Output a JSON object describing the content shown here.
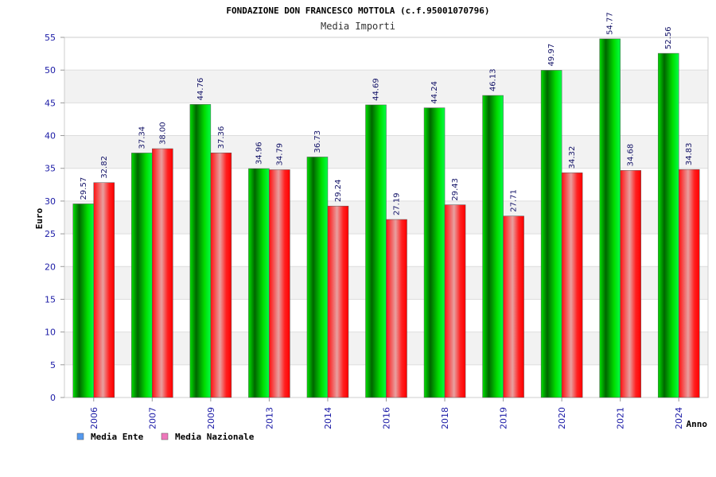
{
  "chart_data": {
    "type": "bar",
    "title": "FONDAZIONE DON FRANCESCO MOTTOLA (c.f.95001070796)",
    "subtitle": "Media Importi",
    "ylabel": "Euro",
    "xlabel": "Anno",
    "ylim": [
      0,
      55
    ],
    "yticks": [
      "0",
      "5",
      "10",
      "15",
      "20",
      "25",
      "30",
      "35",
      "40",
      "45",
      "50",
      "55"
    ],
    "categories": [
      "2006",
      "2007",
      "2009",
      "2013",
      "2014",
      "2016",
      "2018",
      "2019",
      "2020",
      "2021",
      "2024"
    ],
    "series": [
      {
        "name": "Media Ente",
        "values": [
          29.57,
          37.34,
          44.76,
          34.96,
          36.73,
          44.69,
          44.24,
          46.13,
          49.97,
          54.77,
          52.56
        ],
        "labels": [
          "29.57",
          "37.34",
          "44.76",
          "34.96",
          "36.73",
          "44.69",
          "44.24",
          "46.13",
          "49.97",
          "54.77",
          "52.56"
        ],
        "color": "#00c000"
      },
      {
        "name": "Media Nazionale",
        "values": [
          32.82,
          38.0,
          37.36,
          34.79,
          29.24,
          27.19,
          29.43,
          27.71,
          34.32,
          34.68,
          34.83
        ],
        "labels": [
          "32.82",
          "38.00",
          "37.36",
          "34.79",
          "29.24",
          "27.19",
          "29.43",
          "27.71",
          "34.32",
          "34.68",
          "34.83"
        ],
        "color": "#ff0000"
      }
    ],
    "legend": {
      "placement": "bottom-left",
      "swatch_colors": [
        "#5599ee",
        "#ee77bb"
      ]
    },
    "grid": true,
    "band_colors": [
      "#ffffff",
      "#f2f2f2"
    ]
  }
}
